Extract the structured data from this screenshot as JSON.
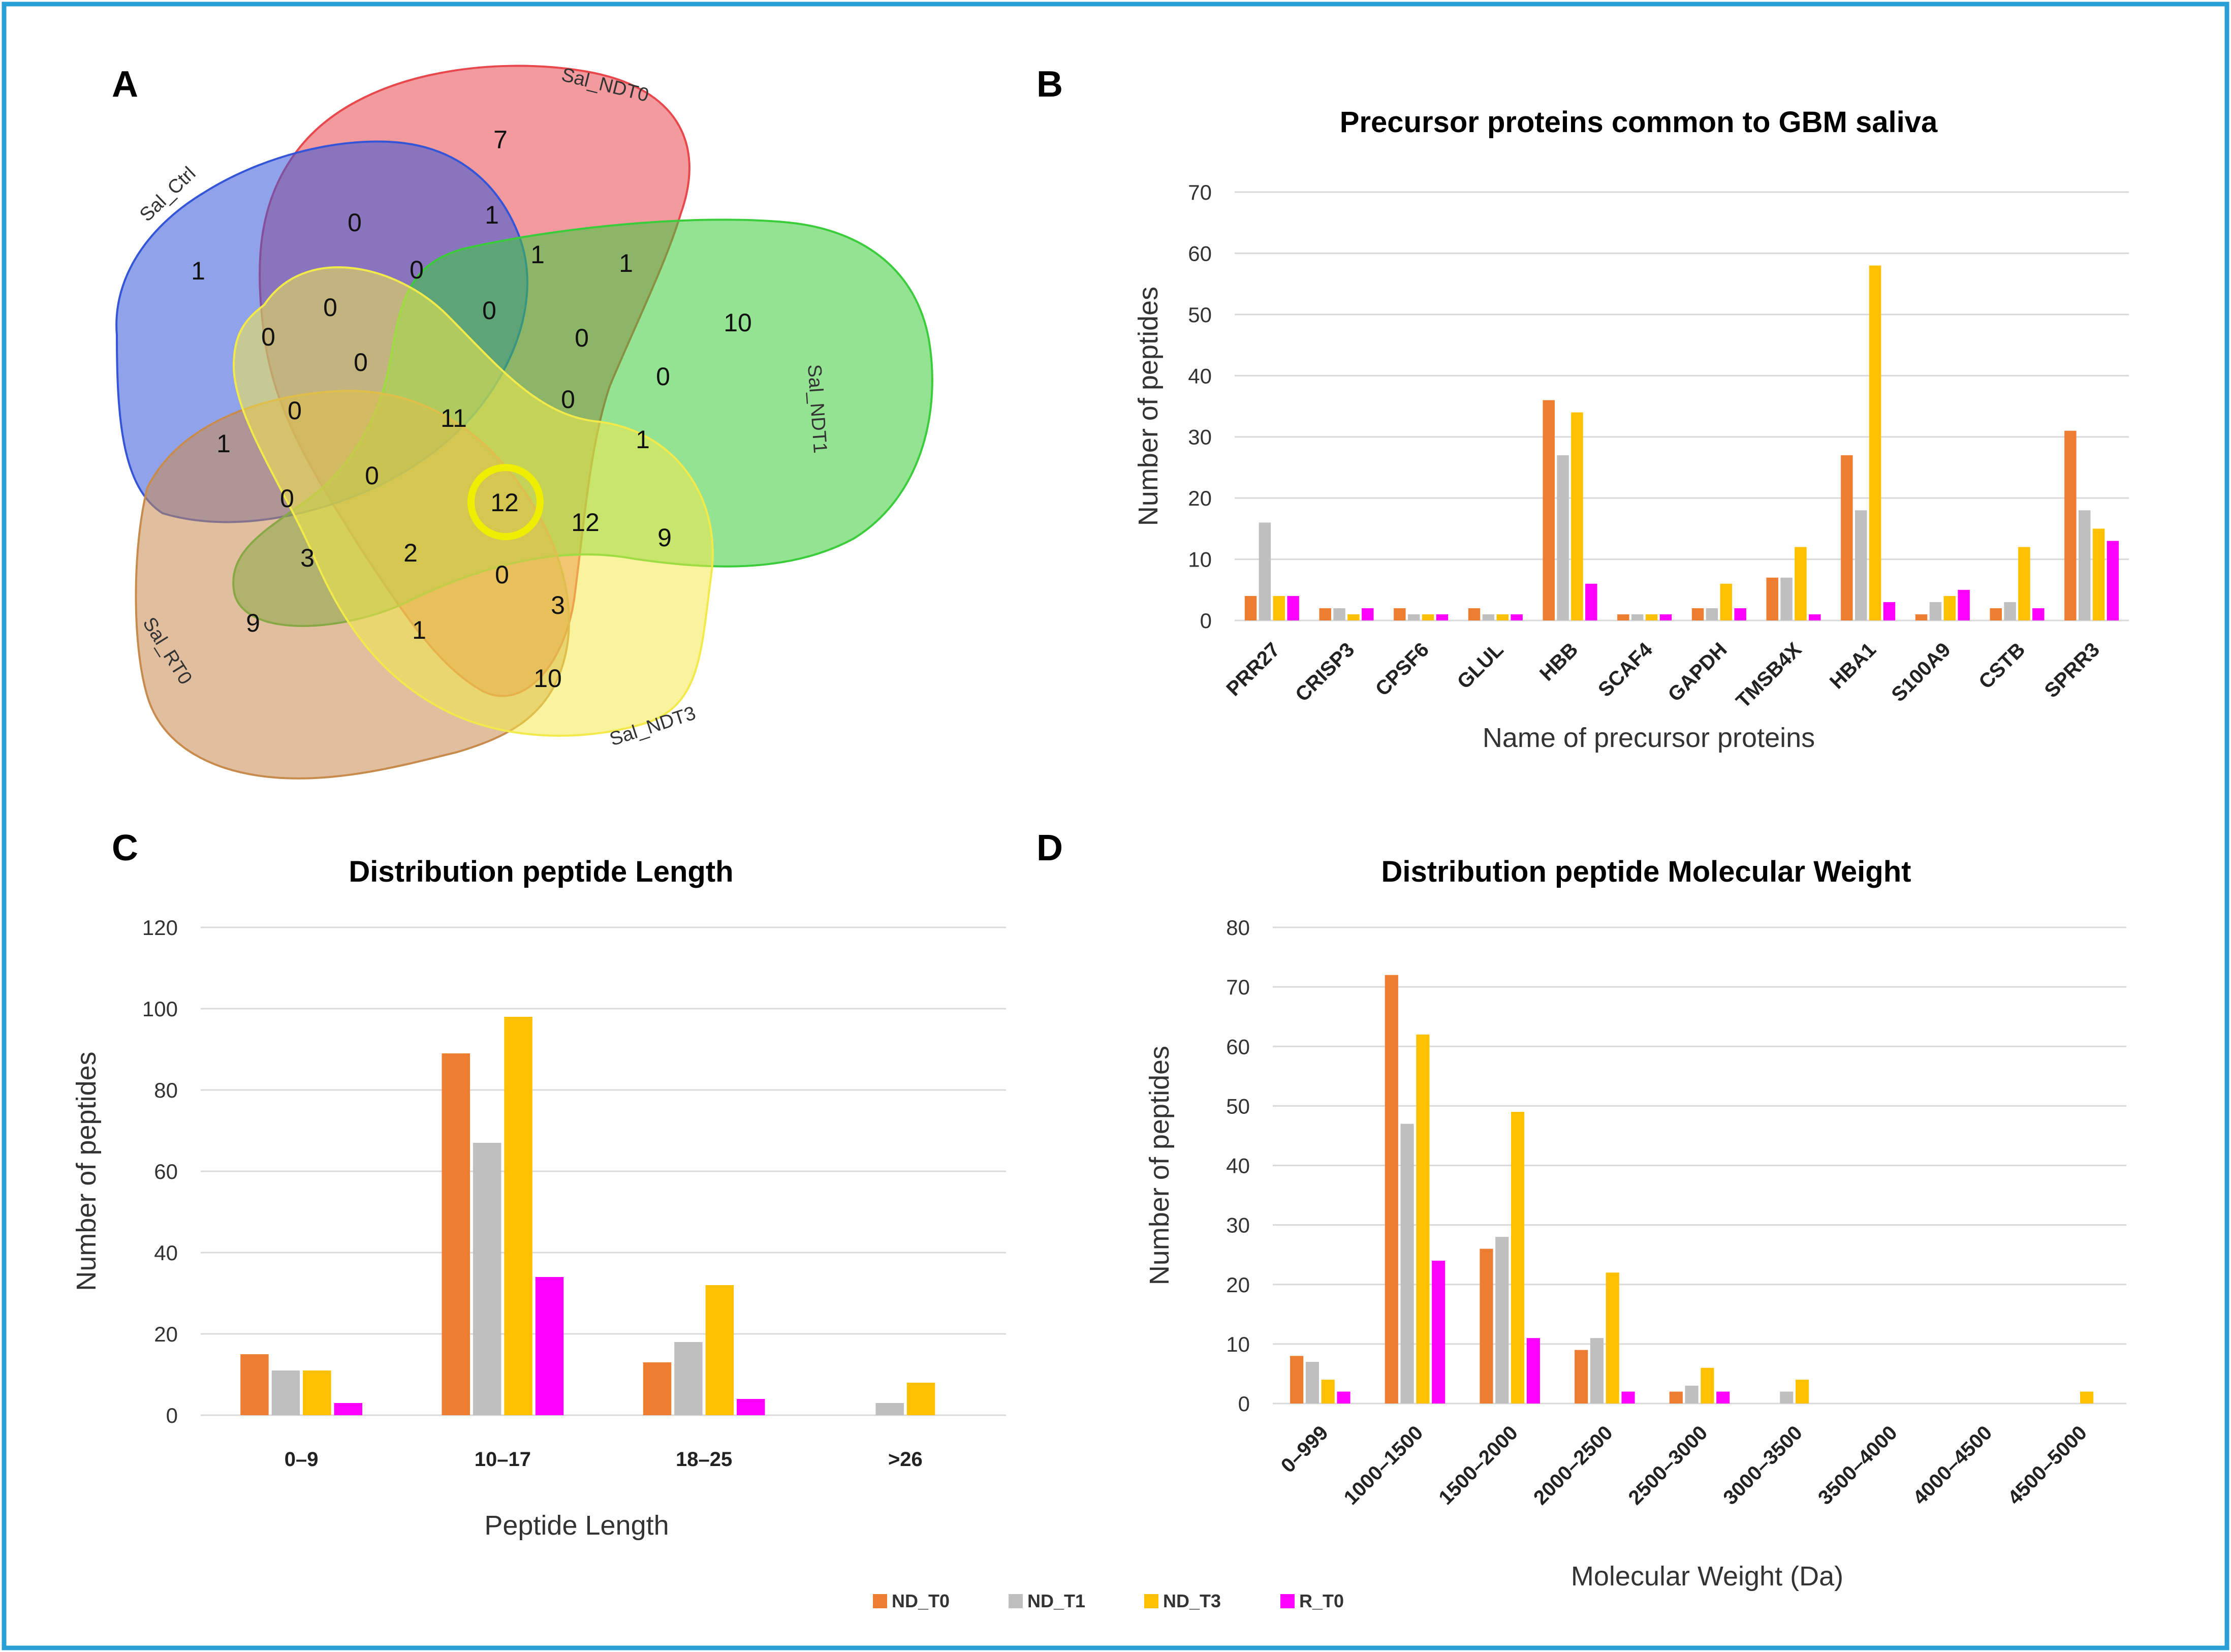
{
  "panels": {
    "a": {
      "letter": "A"
    },
    "b": {
      "letter": "B"
    },
    "c": {
      "letter": "C"
    },
    "d": {
      "letter": "D"
    }
  },
  "venn": {
    "set_labels": [
      "Sal_NDT0",
      "Sal_Ctrl",
      "Sal_NDT1",
      "Sal_RT0",
      "Sal_NDT3"
    ],
    "set_colors": [
      "#e8474c",
      "#3455d8",
      "#3bcc3b",
      "#c88b4e",
      "#f2ea4a"
    ],
    "highlight_color": "#f0ee00",
    "region_values": [
      "7",
      "1",
      "10",
      "9",
      "10",
      "0",
      "1",
      "0",
      "0",
      "1",
      "1",
      "0",
      "0",
      "0",
      "0",
      "0",
      "11",
      "0",
      "0",
      "1",
      "1",
      "0",
      "0",
      "12",
      "12",
      "9",
      "3",
      "2",
      "0",
      "3",
      "1"
    ]
  },
  "chart_data": [
    {
      "type": "bar",
      "title": "Precursor proteins common to GBM saliva",
      "xlabel": "Name of precursor proteins",
      "ylabel": "Number of peptides",
      "ylim": [
        0,
        70
      ],
      "yticks": [
        "0",
        "10",
        "20",
        "30",
        "40",
        "50",
        "60",
        "70"
      ],
      "grid": true,
      "categories": [
        "PRR27",
        "CRISP3",
        "CPSF6",
        "GLUL",
        "HBB",
        "SCAF4",
        "GAPDH",
        "TMSB4X",
        "HBA1",
        "S100A9",
        "CSTB",
        "SPRR3"
      ],
      "series": [
        {
          "name": "ND_T0",
          "color": "#ed7d31",
          "values": [
            4,
            2,
            2,
            2,
            36,
            1,
            2,
            7,
            27,
            1,
            2,
            31
          ]
        },
        {
          "name": "ND_T1",
          "color": "#bfbfbf",
          "values": [
            16,
            2,
            1,
            1,
            27,
            1,
            2,
            7,
            18,
            3,
            3,
            18
          ]
        },
        {
          "name": "ND_T3",
          "color": "#ffc000",
          "values": [
            4,
            1,
            1,
            1,
            34,
            1,
            6,
            12,
            58,
            4,
            12,
            15
          ]
        },
        {
          "name": "R_T0",
          "color": "#ff00ff",
          "values": [
            4,
            2,
            1,
            1,
            6,
            1,
            2,
            1,
            3,
            5,
            2,
            13
          ]
        }
      ]
    },
    {
      "type": "bar",
      "title": "Distribution peptide Length",
      "xlabel": "Peptide Length",
      "ylabel": "Number of peptides",
      "ylim": [
        0,
        120
      ],
      "yticks": [
        "0",
        "20",
        "40",
        "60",
        "80",
        "100",
        "120"
      ],
      "grid": true,
      "categories": [
        "0–9",
        "10–17",
        "18–25",
        ">26"
      ],
      "series": [
        {
          "name": "ND_T0",
          "color": "#ed7d31",
          "values": [
            15,
            89,
            13,
            0
          ]
        },
        {
          "name": "ND_T1",
          "color": "#bfbfbf",
          "values": [
            11,
            67,
            18,
            3
          ]
        },
        {
          "name": "ND_T3",
          "color": "#ffc000",
          "values": [
            11,
            98,
            32,
            8
          ]
        },
        {
          "name": "R_T0",
          "color": "#ff00ff",
          "values": [
            3,
            34,
            4,
            0
          ]
        }
      ]
    },
    {
      "type": "bar",
      "title": "Distribution peptide Molecular Weight",
      "xlabel": "Molecular Weight (Da)",
      "ylabel": "Number of peptides",
      "ylim": [
        0,
        80
      ],
      "yticks": [
        "0",
        "10",
        "20",
        "30",
        "40",
        "50",
        "60",
        "70",
        "80"
      ],
      "grid": true,
      "categories": [
        "0–999",
        "1000–1500",
        "1500–2000",
        "2000–2500",
        "2500–3000",
        "3000–3500",
        "3500–4000",
        "4000–4500",
        "4500–5000"
      ],
      "series": [
        {
          "name": "ND_T0",
          "color": "#ed7d31",
          "values": [
            8,
            72,
            26,
            9,
            2,
            0,
            0,
            0,
            0
          ]
        },
        {
          "name": "ND_T1",
          "color": "#bfbfbf",
          "values": [
            7,
            47,
            28,
            11,
            3,
            2,
            0,
            0,
            0
          ]
        },
        {
          "name": "ND_T3",
          "color": "#ffc000",
          "values": [
            4,
            62,
            49,
            22,
            6,
            4,
            0,
            0,
            2
          ]
        },
        {
          "name": "R_T0",
          "color": "#ff00ff",
          "values": [
            2,
            24,
            11,
            2,
            2,
            0,
            0,
            0,
            0
          ]
        }
      ]
    }
  ],
  "legend": {
    "items": [
      {
        "label": "ND_T0",
        "color": "#ed7d31"
      },
      {
        "label": "ND_T1",
        "color": "#bfbfbf"
      },
      {
        "label": "ND_T3",
        "color": "#ffc000"
      },
      {
        "label": "R_T0",
        "color": "#ff00ff"
      }
    ]
  },
  "frame": {
    "border_color": "#2a9fd6"
  }
}
